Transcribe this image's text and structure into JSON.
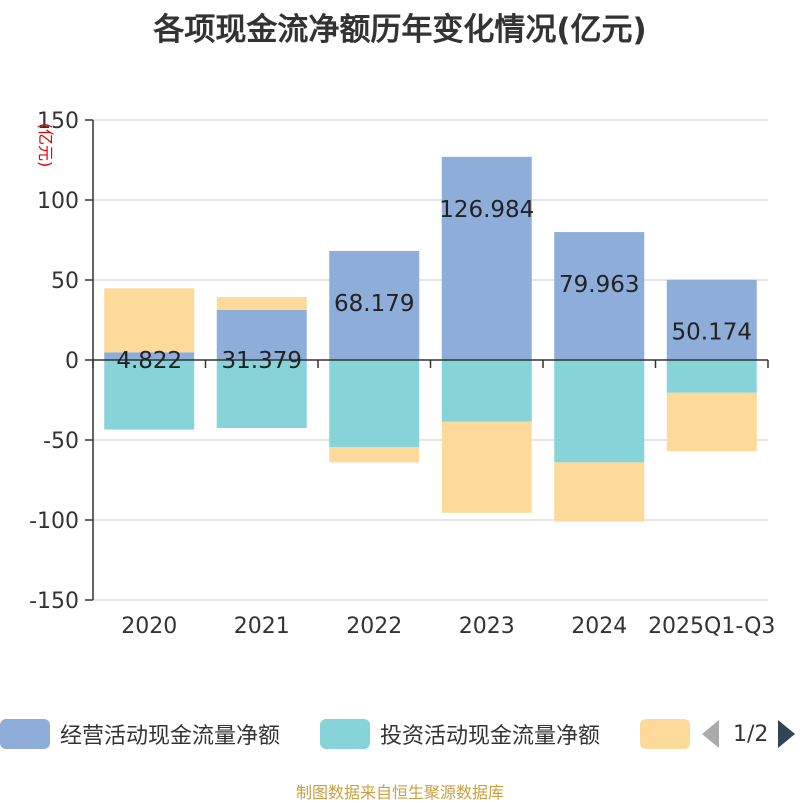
{
  "chart_data": {
    "type": "bar",
    "stacked": true,
    "title": "各项现金流净额历年变化情况(亿元)",
    "ylabel": "(亿元)",
    "xlabel": "",
    "ylim": [
      -150,
      150
    ],
    "yticks": [
      150,
      100,
      50,
      0,
      -50,
      -100,
      -150
    ],
    "grid": true,
    "categories": [
      "2020",
      "2021",
      "2022",
      "2023",
      "2024",
      "2025Q1-Q3"
    ],
    "series": [
      {
        "name": "经营活动现金流量净额",
        "color": "#8eadd9",
        "values": [
          4.822,
          31.379,
          68.179,
          126.984,
          79.963,
          50.174
        ],
        "labels": [
          "4.822",
          "31.379",
          "68.179",
          "126.984",
          "79.963",
          "50.174"
        ]
      },
      {
        "name": "投资活动现金流量净额",
        "color": "#86d4d8",
        "values": [
          -43.5,
          -42.5,
          -54.5,
          -38.5,
          -64,
          -20.5
        ]
      },
      {
        "name": "",
        "color": "#fdd99a",
        "values": [
          40,
          8,
          -9.5,
          -57,
          -37,
          -36.5
        ]
      }
    ],
    "legend_position": "bottom"
  },
  "legend": {
    "items": [
      {
        "label": "经营活动现金流量净额",
        "color": "#8eadd9"
      },
      {
        "label": "投资活动现金流量净额",
        "color": "#86d4d8"
      },
      {
        "label": "",
        "color": "#fdd99a"
      }
    ],
    "page_indicator": "1/2"
  },
  "source_note": "制图数据来自恒生聚源数据库"
}
